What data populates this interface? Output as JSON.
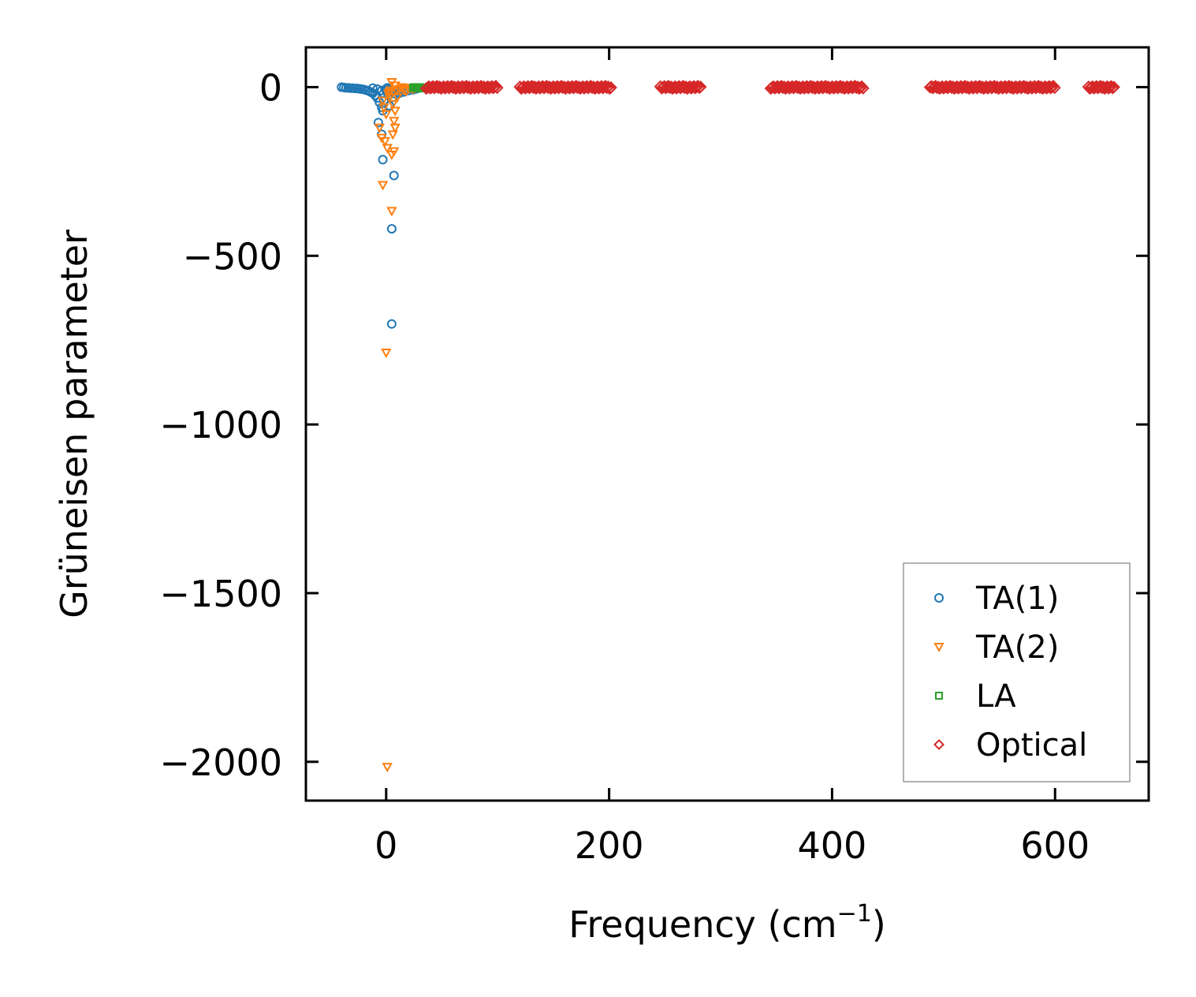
{
  "colors": {
    "ta1": "#1f77b4",
    "ta2": "#ff7f0e",
    "la": "#2ca02c",
    "optical": "#d62728",
    "axis": "#000000",
    "legend_border": "#999999"
  },
  "chart_data": {
    "type": "scatter",
    "title": "",
    "xlabel": "Frequency (cm",
    "xlabel_sup": "−1",
    "xlabel_end": ")",
    "ylabel": "Grüneisen parameter",
    "xlim": [
      -72,
      684
    ],
    "ylim": [
      -2115,
      118
    ],
    "xticks": [
      0,
      200,
      400,
      600
    ],
    "xtick_labels": [
      "0",
      "200",
      "400",
      "600"
    ],
    "yticks": [
      0,
      -500,
      -1000,
      -1500,
      -2000
    ],
    "ytick_labels": [
      "0",
      "−500",
      "−1000",
      "−1500",
      "−2000"
    ],
    "grid": false,
    "legend_position": "lower-right",
    "series": [
      {
        "name": "TA(1)",
        "marker": "circle",
        "color_key": "ta1",
        "legend_label": "TA(1)",
        "points": [
          [
            -40,
            0
          ],
          [
            -38,
            -1
          ],
          [
            -36,
            -2
          ],
          [
            -34,
            -2
          ],
          [
            -32,
            -3
          ],
          [
            -30,
            -3
          ],
          [
            -28,
            -4
          ],
          [
            -26,
            -4
          ],
          [
            -24,
            -5
          ],
          [
            -22,
            -6
          ],
          [
            -20,
            -7
          ],
          [
            -18,
            -9
          ],
          [
            -16,
            -11
          ],
          [
            -14,
            -14
          ],
          [
            -12,
            -18
          ],
          [
            -10,
            -24
          ],
          [
            -8,
            -32
          ],
          [
            -6,
            -45
          ],
          [
            -4,
            -60
          ],
          [
            -3,
            -70
          ],
          [
            -12,
            -3
          ],
          [
            -8,
            -6
          ],
          [
            -4,
            -10
          ],
          [
            0,
            -5
          ],
          [
            4,
            -15
          ],
          [
            8,
            -20
          ],
          [
            12,
            -18
          ],
          [
            16,
            -14
          ],
          [
            20,
            -10
          ],
          [
            24,
            -8
          ],
          [
            26,
            -6
          ],
          [
            28,
            -4
          ],
          [
            10,
            -8
          ],
          [
            14,
            -6
          ],
          [
            18,
            -4
          ],
          [
            22,
            -3
          ],
          [
            6,
            -30
          ],
          [
            2,
            -25
          ],
          [
            0,
            -10
          ],
          [
            -2,
            -40
          ],
          [
            -7,
            -105
          ],
          [
            -4,
            -140
          ],
          [
            -3,
            -215
          ],
          [
            3,
            -55
          ],
          [
            7,
            -262
          ],
          [
            5,
            -420
          ],
          [
            5,
            -702
          ],
          [
            1,
            -2
          ]
        ]
      },
      {
        "name": "TA(2)",
        "marker": "triangle-down",
        "color_key": "ta2",
        "legend_label": "TA(2)",
        "points": [
          [
            -3,
            -40
          ],
          [
            -2,
            -60
          ],
          [
            0,
            -80
          ],
          [
            2,
            -20
          ],
          [
            4,
            -10
          ],
          [
            6,
            -50
          ],
          [
            8,
            -70
          ],
          [
            10,
            -30
          ],
          [
            12,
            -5
          ],
          [
            14,
            0
          ],
          [
            16,
            -8
          ],
          [
            18,
            -12
          ],
          [
            20,
            -4
          ],
          [
            22,
            -2
          ],
          [
            24,
            -6
          ],
          [
            26,
            -3
          ],
          [
            5,
            15
          ],
          [
            8,
            5
          ],
          [
            3,
            -30
          ],
          [
            7,
            -100
          ],
          [
            -6,
            -120
          ],
          [
            -4,
            -150
          ],
          [
            6,
            -140
          ],
          [
            8,
            -120
          ],
          [
            1,
            -180
          ],
          [
            5,
            -200
          ],
          [
            7,
            -190
          ],
          [
            -1,
            -160
          ],
          [
            3,
            -15
          ],
          [
            -3,
            -290
          ],
          [
            5,
            -367
          ],
          [
            0,
            -787
          ],
          [
            1,
            -2015
          ],
          [
            9,
            -8
          ]
        ]
      },
      {
        "name": "LA",
        "marker": "square",
        "color_key": "la",
        "legend_label": "LA",
        "points": [
          [
            24,
            -2
          ],
          [
            26,
            -3
          ],
          [
            27,
            -1
          ],
          [
            28,
            -4
          ],
          [
            29,
            -2
          ],
          [
            30,
            -3
          ],
          [
            31,
            -1
          ],
          [
            32,
            -2
          ],
          [
            33,
            -3
          ],
          [
            34,
            -1
          ],
          [
            35,
            -2
          ],
          [
            25,
            0
          ],
          [
            30,
            0
          ],
          [
            33,
            -4
          ]
        ]
      },
      {
        "name": "Optical",
        "marker": "diamond",
        "color_key": "optical",
        "legend_label": "Optical",
        "ranges": [
          [
            36,
            100
          ],
          [
            120,
            202
          ],
          [
            246,
            283
          ],
          [
            345,
            428
          ],
          [
            488,
            600
          ],
          [
            630,
            654
          ]
        ],
        "y_spread": [
          -4,
          3
        ]
      }
    ]
  }
}
